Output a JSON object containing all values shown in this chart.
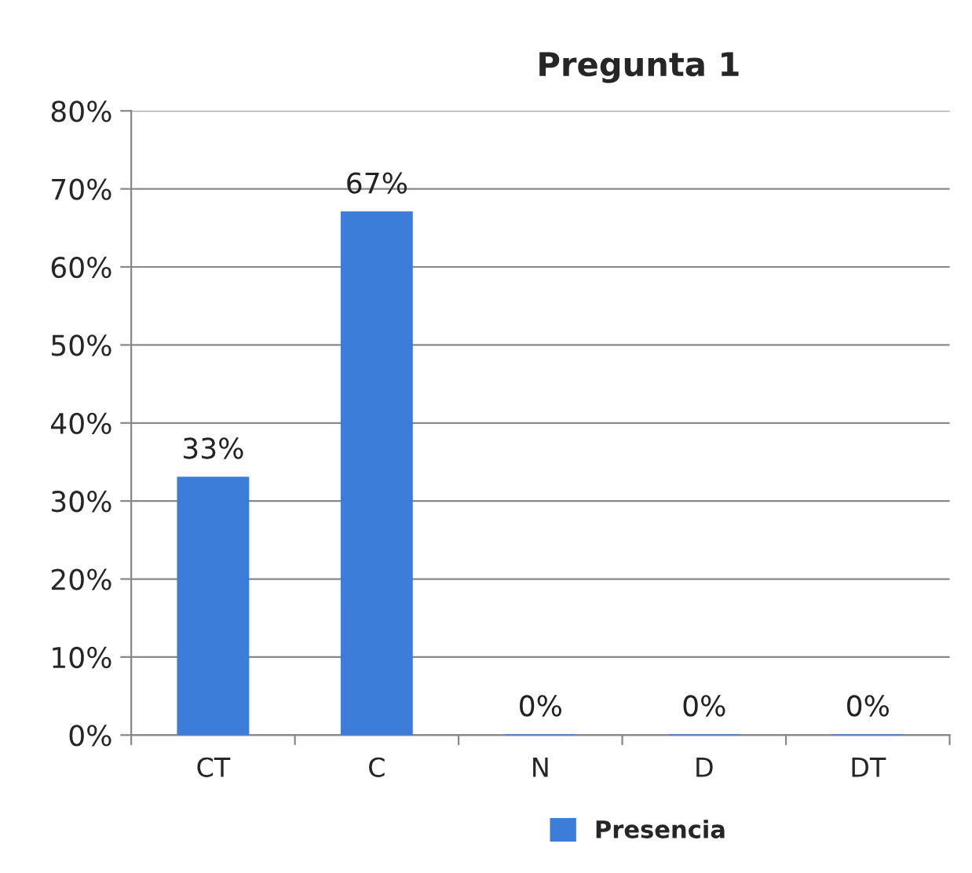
{
  "chart_data": {
    "type": "bar",
    "title": "Pregunta 1",
    "categories": [
      "CT",
      "C",
      "N",
      "D",
      "DT"
    ],
    "series": [
      {
        "name": "Presencia",
        "color": "#3b7dd8",
        "values": [
          33,
          67,
          0,
          0,
          0
        ],
        "value_labels": [
          "33%",
          "67%",
          "0%",
          "0%",
          "0%"
        ]
      }
    ],
    "ylim": [
      0,
      80
    ],
    "yticks": [
      {
        "value": 0,
        "label": "0%"
      },
      {
        "value": 10,
        "label": "10%"
      },
      {
        "value": 20,
        "label": "20%"
      },
      {
        "value": 30,
        "label": "30%"
      },
      {
        "value": 40,
        "label": "40%"
      },
      {
        "value": 50,
        "label": "50%"
      },
      {
        "value": 60,
        "label": "60%"
      },
      {
        "value": 70,
        "label": "70%"
      },
      {
        "value": 80,
        "label": "80%"
      }
    ],
    "grid": "y",
    "legend": "bottom"
  }
}
